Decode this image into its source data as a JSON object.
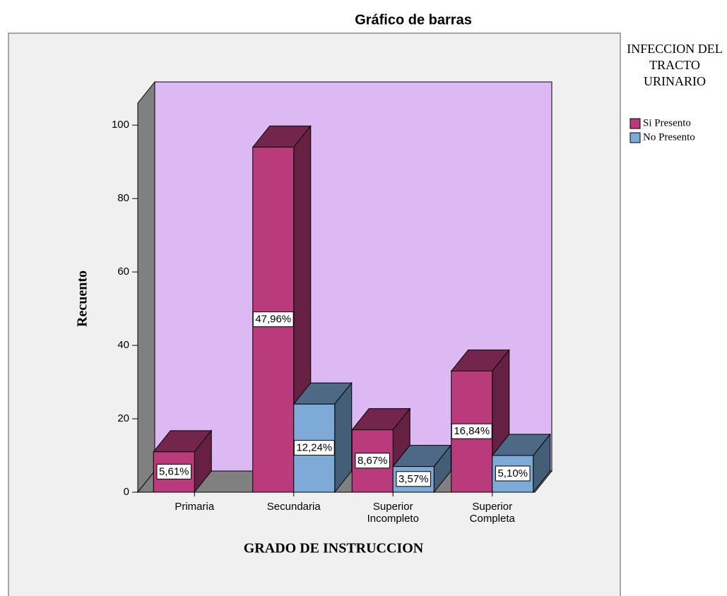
{
  "chart_data": {
    "type": "bar3d",
    "title": "Gráfico de barras",
    "x_label": "GRADO DE INSTRUCCION",
    "y_label": "Recuento",
    "legend_title": "INFECCION DEL TRACTO URINARIO",
    "categories": [
      "Primaria",
      "Secundaria",
      "Superior Incompleto",
      "Superior Completa"
    ],
    "series": [
      {
        "name": "Si Presento",
        "color": "#b93b7b",
        "values": [
          11,
          94,
          17,
          33
        ],
        "value_labels": [
          "5,61%",
          "47,96%",
          "8,67%",
          "16,84%"
        ]
      },
      {
        "name": "No Presento",
        "color": "#7eaad8",
        "values": [
          0,
          24,
          7,
          10
        ],
        "value_labels": [
          null,
          "12,24%",
          "3,57%",
          "5,10%"
        ]
      }
    ],
    "ylim": [
      0,
      106
    ],
    "yticks": [
      0,
      20,
      40,
      60,
      80,
      100
    ]
  }
}
